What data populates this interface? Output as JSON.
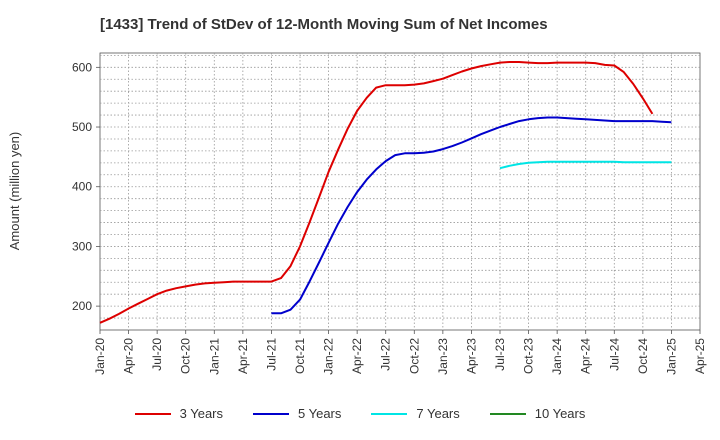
{
  "chart_data": {
    "type": "line",
    "title": "[1433]  Trend of StDev of 12-Month Moving Sum of Net Incomes",
    "ylabel": "Amount (million yen)",
    "xlabel": "",
    "ylim": [
      160,
      624
    ],
    "y_ticks": [
      200,
      300,
      400,
      500,
      600
    ],
    "x_ticks": [
      "Jan-20",
      "Apr-20",
      "Jul-20",
      "Oct-20",
      "Jan-21",
      "Apr-21",
      "Jul-21",
      "Oct-21",
      "Jan-22",
      "Apr-22",
      "Jul-22",
      "Oct-22",
      "Jan-23",
      "Apr-23",
      "Jul-23",
      "Oct-23",
      "Jan-24",
      "Apr-24",
      "Jul-24",
      "Oct-24",
      "Jan-25",
      "Apr-25"
    ],
    "grid": true,
    "legend_position": "bottom",
    "series": [
      {
        "name": "3 Years",
        "color": "#dd0000",
        "points": [
          [
            "Jan-20",
            172
          ],
          [
            "Feb-20",
            179
          ],
          [
            "Mar-20",
            187
          ],
          [
            "Apr-20",
            196
          ],
          [
            "May-20",
            204
          ],
          [
            "Jun-20",
            212
          ],
          [
            "Jul-20",
            220
          ],
          [
            "Aug-20",
            226
          ],
          [
            "Sep-20",
            230
          ],
          [
            "Oct-20",
            233
          ],
          [
            "Nov-20",
            236
          ],
          [
            "Dec-20",
            238
          ],
          [
            "Jan-21",
            239
          ],
          [
            "Feb-21",
            240
          ],
          [
            "Mar-21",
            241
          ],
          [
            "Apr-21",
            241
          ],
          [
            "May-21",
            241
          ],
          [
            "Jun-21",
            241
          ],
          [
            "Jul-21",
            241
          ],
          [
            "Aug-21",
            247
          ],
          [
            "Sep-21",
            267
          ],
          [
            "Oct-21",
            300
          ],
          [
            "Nov-21",
            340
          ],
          [
            "Dec-21",
            382
          ],
          [
            "Jan-22",
            425
          ],
          [
            "Feb-22",
            462
          ],
          [
            "Mar-22",
            497
          ],
          [
            "Apr-22",
            527
          ],
          [
            "May-22",
            549
          ],
          [
            "Jun-22",
            566
          ],
          [
            "Jul-22",
            570
          ],
          [
            "Aug-22",
            570
          ],
          [
            "Sep-22",
            570
          ],
          [
            "Oct-22",
            571
          ],
          [
            "Nov-22",
            573
          ],
          [
            "Dec-22",
            577
          ],
          [
            "Jan-23",
            581
          ],
          [
            "Feb-23",
            587
          ],
          [
            "Mar-23",
            593
          ],
          [
            "Apr-23",
            598
          ],
          [
            "May-23",
            602
          ],
          [
            "Jun-23",
            605
          ],
          [
            "Jul-23",
            608
          ],
          [
            "Aug-23",
            609
          ],
          [
            "Sep-23",
            609
          ],
          [
            "Oct-23",
            608
          ],
          [
            "Nov-23",
            607
          ],
          [
            "Dec-23",
            607
          ],
          [
            "Jan-24",
            608
          ],
          [
            "Feb-24",
            608
          ],
          [
            "Mar-24",
            608
          ],
          [
            "Apr-24",
            608
          ],
          [
            "May-24",
            607
          ],
          [
            "Jun-24",
            604
          ],
          [
            "Jul-24",
            603
          ],
          [
            "Aug-24",
            592
          ],
          [
            "Sep-24",
            572
          ],
          [
            "Oct-24",
            548
          ],
          [
            "Nov-24",
            522
          ]
        ]
      },
      {
        "name": "5 Years",
        "color": "#0000cc",
        "points": [
          [
            "Jul-21",
            188
          ],
          [
            "Aug-21",
            188
          ],
          [
            "Sep-21",
            194
          ],
          [
            "Oct-21",
            211
          ],
          [
            "Nov-21",
            241
          ],
          [
            "Dec-21",
            273
          ],
          [
            "Jan-22",
            306
          ],
          [
            "Feb-22",
            338
          ],
          [
            "Mar-22",
            366
          ],
          [
            "Apr-22",
            391
          ],
          [
            "May-22",
            412
          ],
          [
            "Jun-22",
            429
          ],
          [
            "Jul-22",
            443
          ],
          [
            "Aug-22",
            453
          ],
          [
            "Sep-22",
            456
          ],
          [
            "Oct-22",
            456
          ],
          [
            "Nov-22",
            457
          ],
          [
            "Dec-22",
            459
          ],
          [
            "Jan-23",
            463
          ],
          [
            "Feb-23",
            468
          ],
          [
            "Mar-23",
            474
          ],
          [
            "Apr-23",
            481
          ],
          [
            "May-23",
            488
          ],
          [
            "Jun-23",
            494
          ],
          [
            "Jul-23",
            500
          ],
          [
            "Aug-23",
            505
          ],
          [
            "Sep-23",
            510
          ],
          [
            "Oct-23",
            513
          ],
          [
            "Nov-23",
            515
          ],
          [
            "Dec-23",
            516
          ],
          [
            "Jan-24",
            516
          ],
          [
            "Feb-24",
            515
          ],
          [
            "Mar-24",
            514
          ],
          [
            "Apr-24",
            513
          ],
          [
            "May-24",
            512
          ],
          [
            "Jun-24",
            511
          ],
          [
            "Jul-24",
            510
          ],
          [
            "Aug-24",
            510
          ],
          [
            "Sep-24",
            510
          ],
          [
            "Oct-24",
            510
          ],
          [
            "Nov-24",
            510
          ],
          [
            "Dec-24",
            509
          ],
          [
            "Jan-25",
            508
          ]
        ]
      },
      {
        "name": "7 Years",
        "color": "#00e5e5",
        "points": [
          [
            "Jul-23",
            431
          ],
          [
            "Aug-23",
            435
          ],
          [
            "Sep-23",
            438
          ],
          [
            "Oct-23",
            440
          ],
          [
            "Nov-23",
            441
          ],
          [
            "Dec-23",
            442
          ],
          [
            "Jan-24",
            442
          ],
          [
            "Feb-24",
            442
          ],
          [
            "Mar-24",
            442
          ],
          [
            "Apr-24",
            442
          ],
          [
            "May-24",
            442
          ],
          [
            "Jun-24",
            442
          ],
          [
            "Jul-24",
            442
          ],
          [
            "Aug-24",
            441
          ],
          [
            "Sep-24",
            441
          ],
          [
            "Oct-24",
            441
          ],
          [
            "Nov-24",
            441
          ],
          [
            "Dec-24",
            441
          ],
          [
            "Jan-25",
            441
          ]
        ]
      },
      {
        "name": "10 Years",
        "color": "#228822",
        "points": []
      }
    ]
  }
}
